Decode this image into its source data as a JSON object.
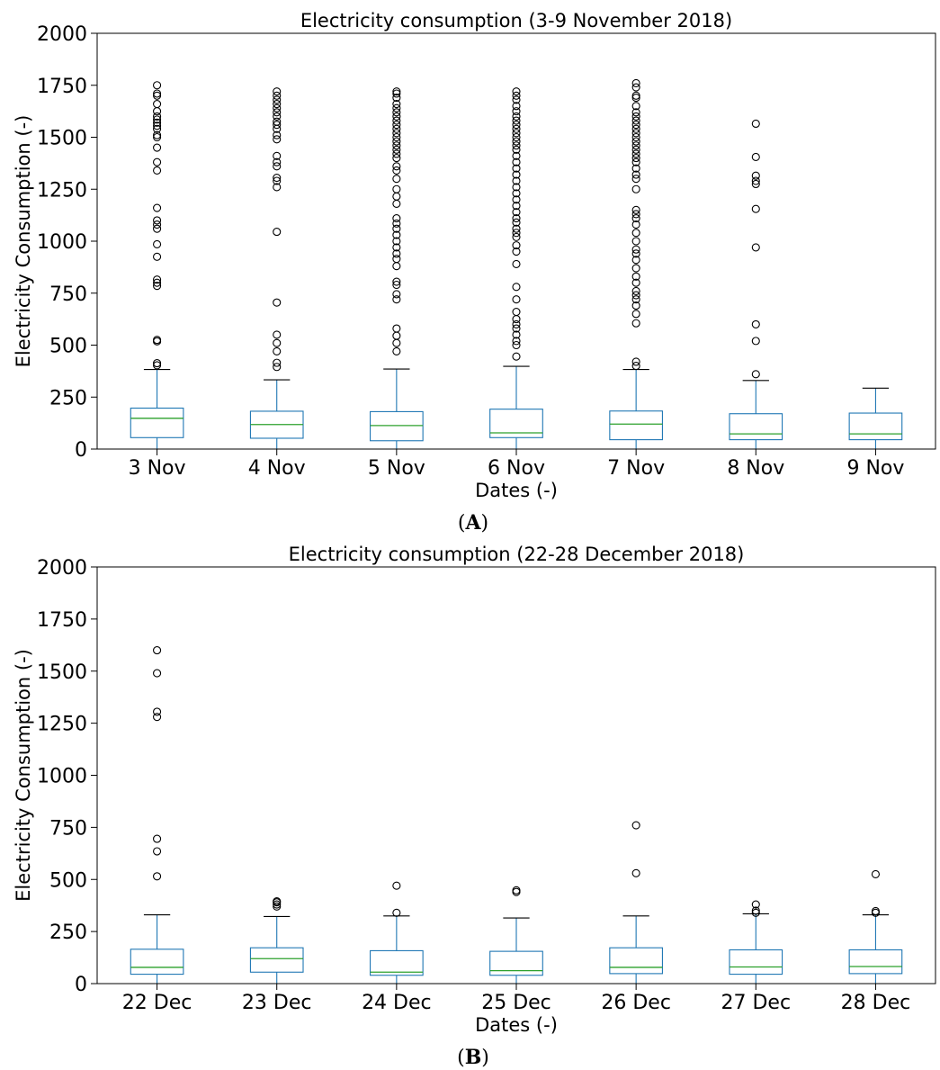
{
  "chart_data": [
    {
      "type": "box",
      "panel_label": "A",
      "title": "Electricity consumption (3-9 November 2018)",
      "xlabel": "Dates (-)",
      "ylabel": "Electricity Consumption (-)",
      "ylim": [
        0,
        2000
      ],
      "yticks": [
        0,
        250,
        500,
        750,
        1000,
        1250,
        1500,
        1750,
        2000
      ],
      "grid": false,
      "categories": [
        "3 Nov",
        "4 Nov",
        "5 Nov",
        "6 Nov",
        "7 Nov",
        "8 Nov",
        "9 Nov"
      ],
      "boxes": [
        {
          "whisker_low": 0,
          "q1": 55,
          "median": 148,
          "q3": 197,
          "whisker_high": 383,
          "outliers": [
            403,
            413,
            518,
            525,
            785,
            800,
            815,
            925,
            985,
            1060,
            1080,
            1100,
            1160,
            1340,
            1380,
            1450,
            1500,
            1510,
            1540,
            1555,
            1570,
            1585,
            1600,
            1625,
            1660,
            1700,
            1710,
            1750
          ]
        },
        {
          "whisker_low": 0,
          "q1": 52,
          "median": 118,
          "q3": 182,
          "whisker_high": 333,
          "outliers": [
            395,
            415,
            470,
            510,
            550,
            705,
            1045,
            1260,
            1290,
            1305,
            1360,
            1380,
            1410,
            1490,
            1510,
            1540,
            1560,
            1575,
            1600,
            1620,
            1640,
            1660,
            1680,
            1700,
            1720
          ]
        },
        {
          "whisker_low": 0,
          "q1": 40,
          "median": 113,
          "q3": 180,
          "whisker_high": 385,
          "outliers": [
            470,
            510,
            545,
            580,
            720,
            745,
            790,
            805,
            880,
            915,
            940,
            970,
            1000,
            1030,
            1060,
            1085,
            1110,
            1180,
            1215,
            1250,
            1300,
            1340,
            1360,
            1400,
            1420,
            1440,
            1460,
            1480,
            1500,
            1520,
            1540,
            1560,
            1580,
            1600,
            1620,
            1640,
            1660,
            1690,
            1710,
            1720
          ]
        },
        {
          "whisker_low": 0,
          "q1": 55,
          "median": 78,
          "q3": 192,
          "whisker_high": 398,
          "outliers": [
            445,
            500,
            520,
            550,
            580,
            600,
            625,
            660,
            720,
            780,
            890,
            950,
            980,
            1020,
            1040,
            1060,
            1090,
            1110,
            1140,
            1170,
            1200,
            1230,
            1260,
            1290,
            1320,
            1350,
            1380,
            1410,
            1440,
            1460,
            1480,
            1500,
            1520,
            1540,
            1560,
            1580,
            1600,
            1625,
            1650,
            1680,
            1700,
            1720
          ]
        },
        {
          "whisker_low": 0,
          "q1": 45,
          "median": 120,
          "q3": 183,
          "whisker_high": 383,
          "outliers": [
            400,
            420,
            605,
            650,
            690,
            720,
            740,
            760,
            800,
            830,
            870,
            910,
            940,
            960,
            1000,
            1040,
            1080,
            1110,
            1130,
            1150,
            1250,
            1300,
            1320,
            1350,
            1380,
            1400,
            1420,
            1440,
            1460,
            1480,
            1500,
            1520,
            1540,
            1560,
            1580,
            1600,
            1620,
            1650,
            1690,
            1700,
            1740,
            1760
          ]
        },
        {
          "whisker_low": 0,
          "q1": 45,
          "median": 73,
          "q3": 170,
          "whisker_high": 330,
          "outliers": [
            360,
            520,
            600,
            970,
            1155,
            1275,
            1290,
            1315,
            1405,
            1565
          ]
        },
        {
          "whisker_low": 0,
          "q1": 45,
          "median": 73,
          "q3": 173,
          "whisker_high": 293,
          "outliers": []
        }
      ]
    },
    {
      "type": "box",
      "panel_label": "B",
      "title": "Electricity consumption (22-28 December 2018)",
      "xlabel": "Dates (-)",
      "ylabel": "Electricity Consumption (-)",
      "ylim": [
        0,
        2000
      ],
      "yticks": [
        0,
        250,
        500,
        750,
        1000,
        1250,
        1500,
        1750,
        2000
      ],
      "grid": false,
      "categories": [
        "22 Dec",
        "23 Dec",
        "24 Dec",
        "25 Dec",
        "26 Dec",
        "27 Dec",
        "28 Dec"
      ],
      "boxes": [
        {
          "whisker_low": 0,
          "q1": 45,
          "median": 78,
          "q3": 165,
          "whisker_high": 330,
          "outliers": [
            515,
            635,
            695,
            1280,
            1305,
            1490,
            1600
          ]
        },
        {
          "whisker_low": 0,
          "q1": 55,
          "median": 120,
          "q3": 172,
          "whisker_high": 322,
          "outliers": [
            370,
            380,
            390,
            395
          ]
        },
        {
          "whisker_low": 0,
          "q1": 40,
          "median": 55,
          "q3": 158,
          "whisker_high": 325,
          "outliers": [
            340,
            470
          ]
        },
        {
          "whisker_low": 0,
          "q1": 40,
          "median": 62,
          "q3": 155,
          "whisker_high": 315,
          "outliers": [
            440,
            448
          ]
        },
        {
          "whisker_low": 0,
          "q1": 48,
          "median": 78,
          "q3": 172,
          "whisker_high": 325,
          "outliers": [
            530,
            760
          ]
        },
        {
          "whisker_low": 0,
          "q1": 45,
          "median": 80,
          "q3": 162,
          "whisker_high": 335,
          "outliers": [
            340,
            350,
            380
          ]
        },
        {
          "whisker_low": 0,
          "q1": 48,
          "median": 82,
          "q3": 162,
          "whisker_high": 330,
          "outliers": [
            340,
            348,
            525
          ]
        }
      ]
    }
  ],
  "colors": {
    "box": "#1f77b4",
    "median": "#2ca02c",
    "outlier": "#000000",
    "axes": "#000000"
  }
}
